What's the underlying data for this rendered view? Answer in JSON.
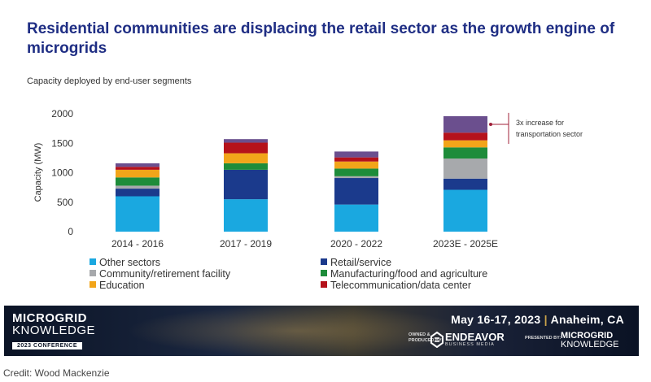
{
  "title": "Residential communities are displacing the retail sector as the growth engine of microgrids",
  "subtitle": "Capacity deployed by end-user segments",
  "colors": {
    "title": "#1f2e84",
    "other_sectors": "#1aa8e0",
    "retail_service": "#1b3a8c",
    "community": "#a7a9ac",
    "manufacturing": "#1e8c3a",
    "education": "#f2a51a",
    "telecom": "#b5121b",
    "transportation": "#6b4f8e",
    "annotation": "#a0203a"
  },
  "chart_data": {
    "type": "bar",
    "stacked": true,
    "categories": [
      "2014 - 2016",
      "2017 - 2019",
      "2020 - 2022",
      "2023E - 2025E"
    ],
    "ylabel": "Capacity (MW)",
    "xlabel": "",
    "ylim": [
      0,
      2000
    ],
    "yticks": [
      0,
      500,
      1000,
      1500,
      2000
    ],
    "series": [
      {
        "name": "Other sectors",
        "color": "#1aa8e0",
        "values": [
          600,
          550,
          460,
          710
        ]
      },
      {
        "name": "Retail/service",
        "color": "#1b3a8c",
        "values": [
          130,
          500,
          450,
          190
        ]
      },
      {
        "name": "Community/retirement facility",
        "color": "#a7a9ac",
        "values": [
          50,
          0,
          30,
          340
        ]
      },
      {
        "name": "Manufacturing/food and agriculture",
        "color": "#1e8c3a",
        "values": [
          140,
          110,
          130,
          190
        ]
      },
      {
        "name": "Education",
        "color": "#f2a51a",
        "values": [
          130,
          170,
          120,
          120
        ]
      },
      {
        "name": "Telecommunication/data center",
        "color": "#b5121b",
        "values": [
          50,
          180,
          70,
          130
        ]
      },
      {
        "name": "",
        "color": "#6b4f8e",
        "values": [
          60,
          60,
          100,
          280
        ]
      }
    ],
    "annotation": {
      "text_line1": "3x increase for",
      "text_line2": "transportation sector",
      "category": "2023E - 2025E"
    },
    "legend_position": "bottom",
    "grid": false
  },
  "banner": {
    "brand_line1": "MICROGRID",
    "brand_line2": "KNOWLEDGE",
    "conference": "2023 CONFERENCE",
    "event_date": "May 16-17, 2023",
    "event_sep": "|",
    "event_location": "Anaheim, CA",
    "owned_line1": "OWNED &",
    "owned_line2": "PRODUCED BY:",
    "endeavor_name": "ENDEAVOR",
    "endeavor_sub": "BUSINESS MEDIA",
    "presented_by": "PRESENTED BY:",
    "right_brand_line1": "MICROGRID",
    "right_brand_line2": "KNOWLEDGE"
  },
  "credit": "Credit: Wood Mackenzie"
}
